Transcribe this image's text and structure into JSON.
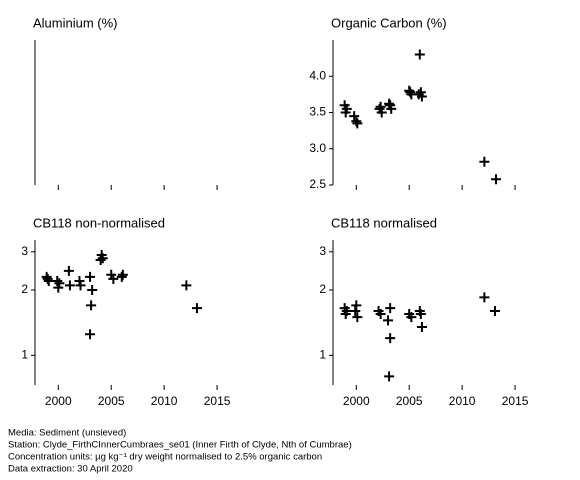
{
  "chart_data": [
    {
      "type": "scatter",
      "title": "Aluminium (%)",
      "xlim": [
        1997.8,
        2020
      ],
      "xticks": [
        2000,
        2005,
        2010,
        2015
      ],
      "xticklabels": false,
      "color": "#000000"
    },
    {
      "type": "scatter",
      "title": "Organic Carbon (%)",
      "xlim": [
        1997.8,
        2020
      ],
      "xticks": [
        2000,
        2005,
        2010,
        2015
      ],
      "xticklabels": false,
      "color": "#000000",
      "ylim": [
        2.5,
        4.5
      ],
      "yticks": [
        {
          "value": 2.5,
          "label": "2.5"
        },
        {
          "value": 3.0,
          "label": "3.0"
        },
        {
          "value": 3.5,
          "label": "3.5"
        },
        {
          "value": 4.0,
          "label": "4.0"
        }
      ],
      "x": [
        1998.9,
        1999.1,
        1999.0,
        1999.8,
        2000.0,
        2000.1,
        2002.2,
        2002.4,
        2002.3,
        2003.2,
        2003.3,
        2003.1,
        2005.0,
        2005.2,
        2005.1,
        2006.0,
        2006.1,
        2006.2,
        2005.9,
        2012.1,
        2013.2
      ],
      "values": [
        3.6,
        3.55,
        3.5,
        3.45,
        3.38,
        3.35,
        3.55,
        3.5,
        3.58,
        3.6,
        3.55,
        3.62,
        3.8,
        3.75,
        3.78,
        4.3,
        3.78,
        3.72,
        3.75,
        2.82,
        2.58
      ]
    },
    {
      "type": "scatter",
      "title": "CB118 non-normalised",
      "log": true,
      "xlim": [
        1997.8,
        2020
      ],
      "xticks": [
        2000,
        2005,
        2010,
        2015
      ],
      "xticklabels": true,
      "color": "#000000",
      "ylim": [
        0.73,
        3.4
      ],
      "yticks": [
        1,
        2,
        3
      ],
      "x": [
        1998.9,
        1999.1,
        1999.0,
        1999.9,
        2000.0,
        2000.1,
        2001.0,
        2001.1,
        2002.0,
        2002.1,
        2003.0,
        2003.2,
        2003.1,
        2003.0,
        2004.1,
        2004.0,
        2004.2,
        2005.0,
        2005.2,
        2006.0,
        2006.1,
        2012.1,
        2013.1
      ],
      "values": [
        2.3,
        2.2,
        2.25,
        2.2,
        2.05,
        2.15,
        2.45,
        2.1,
        2.2,
        2.1,
        2.3,
        2.0,
        1.7,
        1.25,
        2.9,
        2.75,
        2.8,
        2.35,
        2.25,
        2.3,
        2.35,
        2.1,
        1.65
      ]
    },
    {
      "type": "scatter",
      "title": "CB118 normalised",
      "log": true,
      "xlim": [
        1997.8,
        2020
      ],
      "xticks": [
        2000,
        2005,
        2010,
        2015
      ],
      "xticklabels": true,
      "color": "#000000",
      "ylim": [
        0.73,
        3.4
      ],
      "yticks": [
        1,
        2,
        3
      ],
      "x": [
        1998.9,
        1999.1,
        1999.0,
        2000.0,
        1999.9,
        2000.1,
        2002.1,
        2002.3,
        2003.2,
        2003.0,
        2003.2,
        2003.1,
        2005.0,
        2005.2,
        2006.0,
        2006.1,
        2006.2,
        2012.1,
        2013.1
      ],
      "values": [
        1.65,
        1.6,
        1.55,
        1.7,
        1.6,
        1.5,
        1.6,
        1.55,
        1.65,
        1.45,
        1.2,
        0.8,
        1.55,
        1.5,
        1.6,
        1.55,
        1.35,
        1.85,
        1.6
      ]
    }
  ],
  "footer": [
    "Media: Sediment (unsieved)",
    "Station: Clyde_FirthCInnerCumbraes_se01 (Inner Firth of Clyde, Nth of Cumbrae)",
    "Concentration units: µg kg⁻¹ dry weight normalised to 2.5% organic carbon",
    "Data extraction: 30 April 2020"
  ]
}
